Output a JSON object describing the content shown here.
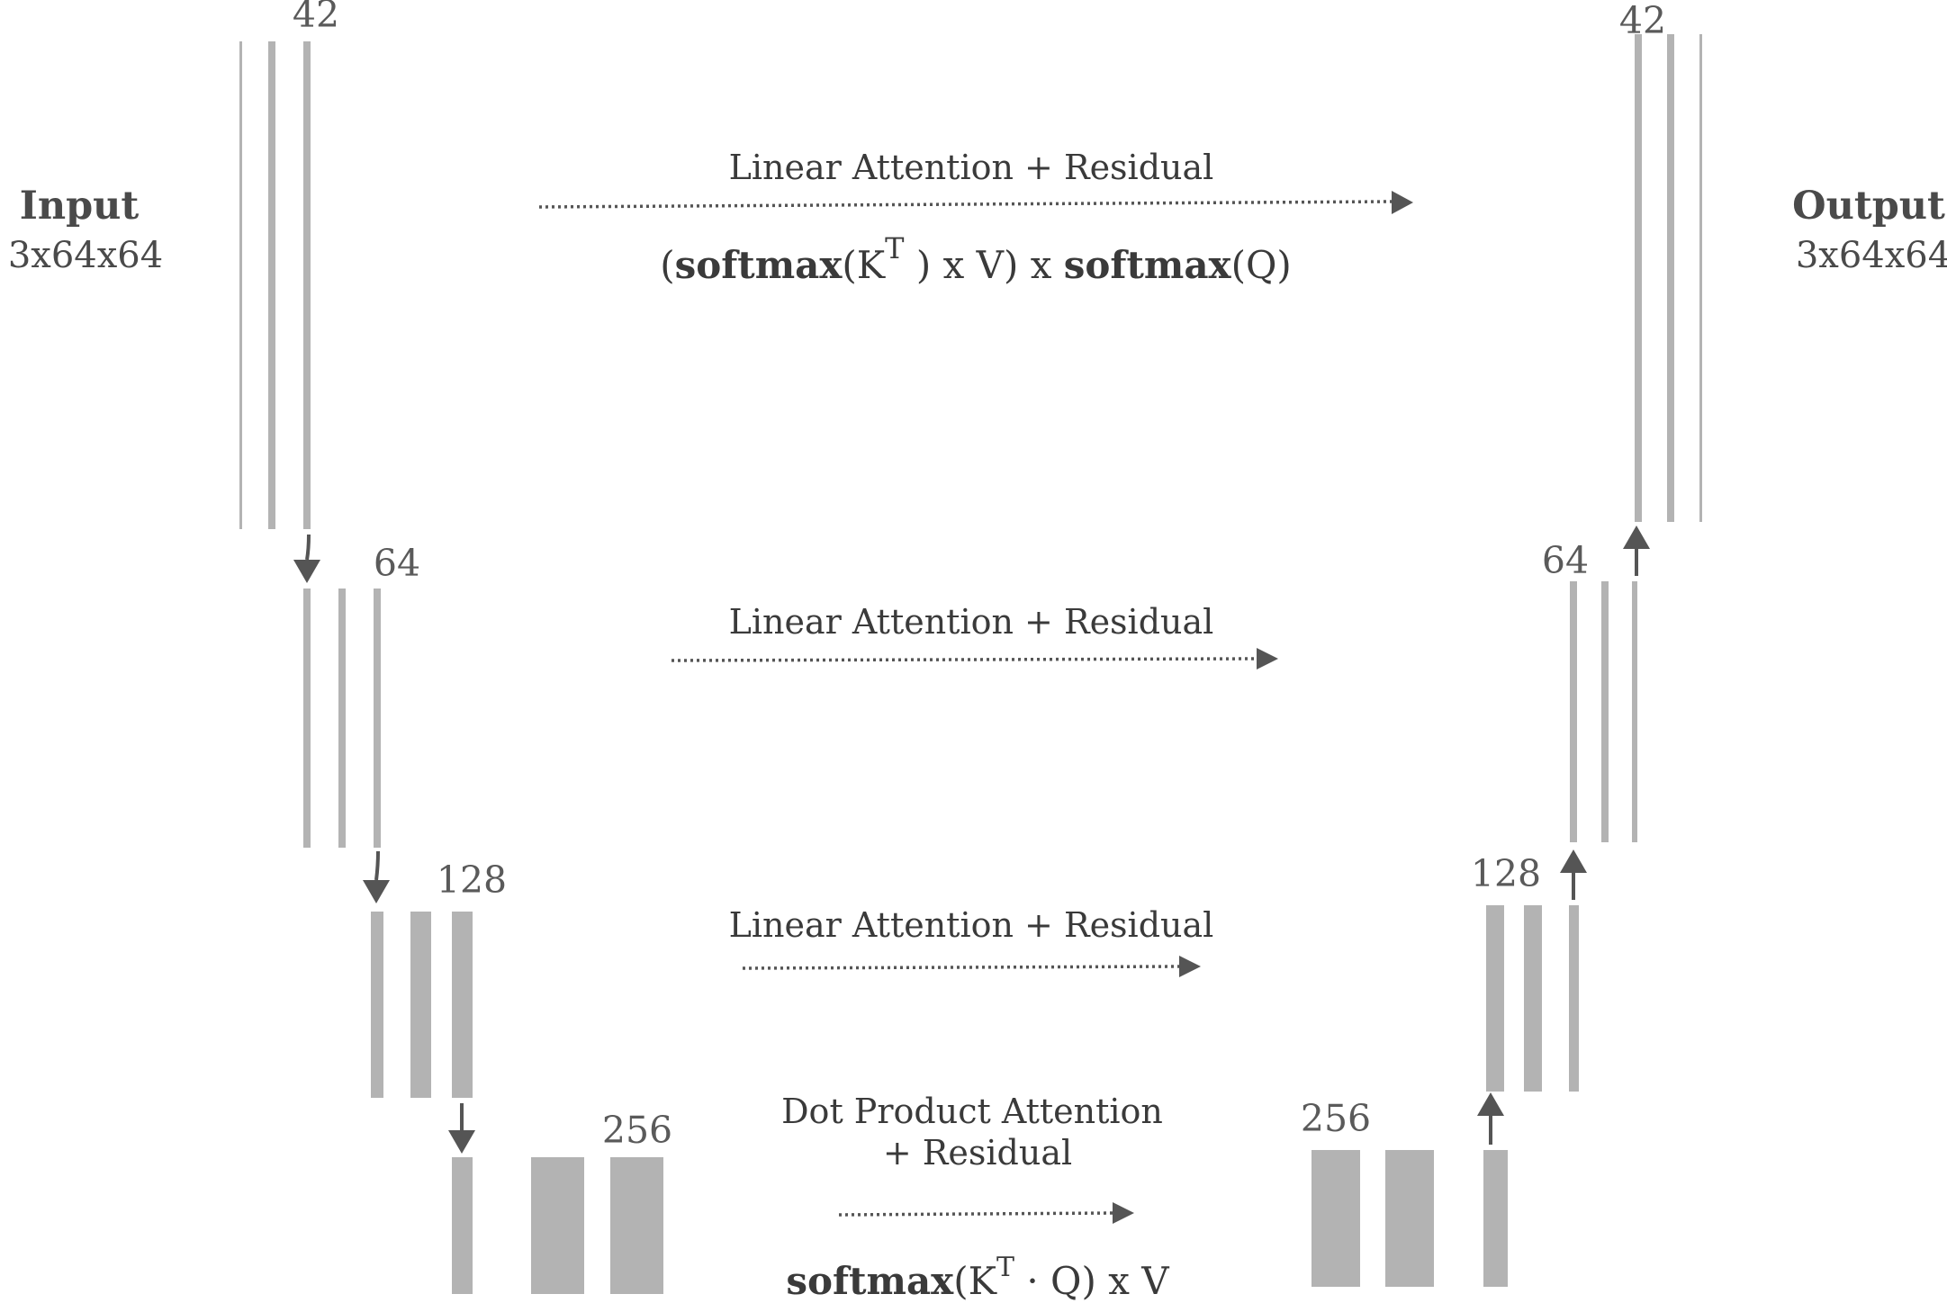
{
  "input": {
    "title": "Input",
    "shape": "3x64x64"
  },
  "output": {
    "title": "Output",
    "shape": "3x64x64"
  },
  "encoder": [
    {
      "channels": "42"
    },
    {
      "channels": "64"
    },
    {
      "channels": "128"
    },
    {
      "channels": "256"
    }
  ],
  "decoder": [
    {
      "channels": "42"
    },
    {
      "channels": "64"
    },
    {
      "channels": "128"
    },
    {
      "channels": "256"
    }
  ],
  "connections": [
    {
      "label": "Linear Attention + Residual",
      "formula": {
        "p1": "(",
        "b1": "softmax",
        "p2": "(K",
        "sup": "T",
        "p3": " ) x V) x ",
        "b2": "softmax",
        "p4": "(Q)"
      }
    },
    {
      "label": "Linear Attention + Residual"
    },
    {
      "label": "Linear Attention + Residual"
    },
    {
      "label_line1": "Dot Product Attention",
      "label_line2": "+ Residual",
      "formula": {
        "b1": "softmax",
        "p1": "(K",
        "sup": "T",
        "p2": "  · Q) x V"
      }
    }
  ],
  "colors": {
    "bar": "#b3b3b3",
    "arrow": "#555555",
    "text": "#4a4a4a"
  }
}
